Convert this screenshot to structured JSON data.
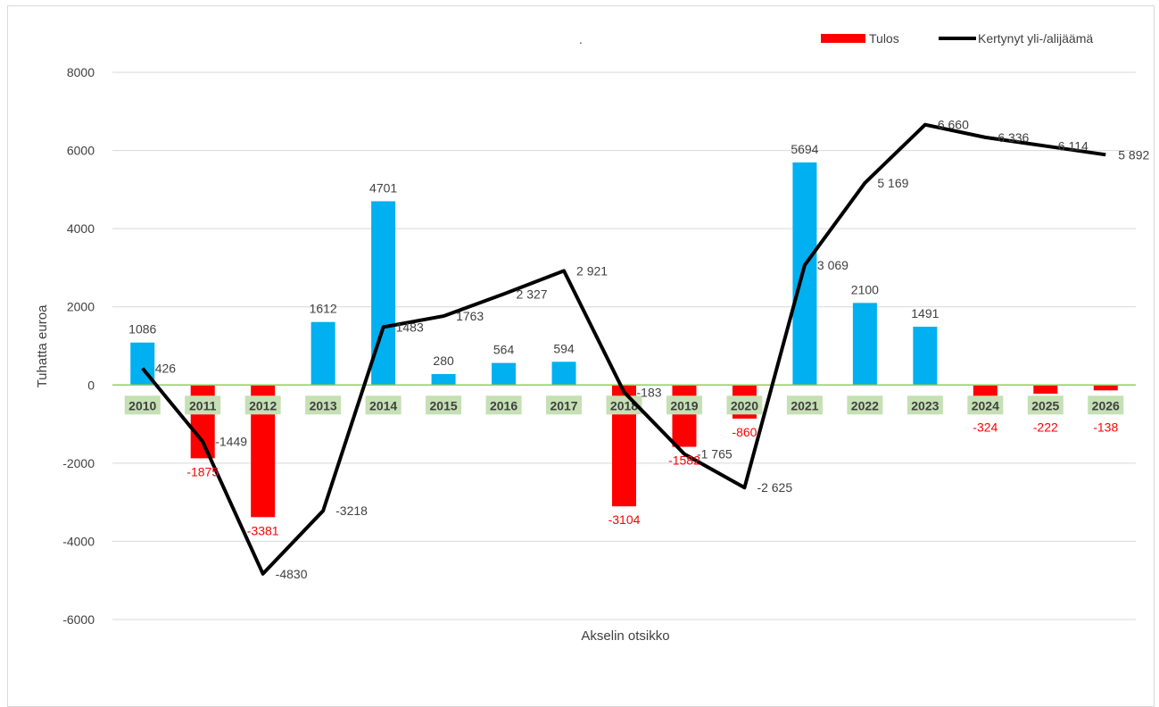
{
  "chart_data": {
    "type": "bar",
    "title": ".",
    "xlabel": "Akselin otsikko",
    "ylabel": "Tuhatta euroa",
    "ylim": [
      -6000,
      8000
    ],
    "yticks": [
      8000,
      6000,
      4000,
      2000,
      0,
      -2000,
      -4000,
      -6000
    ],
    "grid": true,
    "legend_position": "top-right",
    "categories": [
      "2010",
      "2011",
      "2012",
      "2013",
      "2014",
      "2015",
      "2016",
      "2017",
      "2018",
      "2019",
      "2020",
      "2021",
      "2022",
      "2023",
      "2024",
      "2025",
      "2026"
    ],
    "series": [
      {
        "name": "Tulos",
        "type": "bar",
        "values": [
          1086,
          -1875,
          -3381,
          1612,
          4701,
          280,
          564,
          594,
          -3104,
          -1582,
          -860,
          5694,
          2100,
          1491,
          -324,
          -222,
          -138
        ],
        "labels": [
          "1086",
          "-1875",
          "-3381",
          "1612",
          "4701",
          "280",
          "564",
          "594",
          "-3104",
          "-1582",
          "-860",
          "5694",
          "2100",
          "1491",
          "-324",
          "-222",
          "-138"
        ]
      },
      {
        "name": "Kertynyt yli-/alijäämä",
        "type": "line",
        "values": [
          426,
          -1449,
          -4830,
          -3218,
          1483,
          1763,
          2327,
          2921,
          -183,
          -1765,
          -2625,
          3069,
          5169,
          6660,
          6336,
          6114,
          5892
        ],
        "labels": [
          "426",
          "-1449",
          "-4830",
          "-3218",
          "1483",
          "1763",
          "2 327",
          "2 921",
          "-183",
          "-1 765",
          "-2 625",
          "3 069",
          "5 169",
          "6 660",
          "6 336",
          "6 114",
          "5 892"
        ]
      }
    ]
  },
  "colors": {
    "positive_bar": "#00b0f0",
    "negative_bar": "#ff0000",
    "line": "#000000",
    "zero_line": "#92d050",
    "category_label_bg": "#c5e0b4",
    "grid": "#d9d9d9"
  }
}
